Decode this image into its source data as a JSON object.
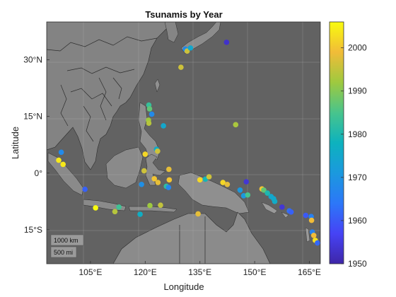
{
  "chart_data": {
    "type": "scatter",
    "title": "Tsunamis by Year",
    "xlabel": "Longitude",
    "ylabel": "Latitude",
    "xlim": [
      93,
      168
    ],
    "ylim": [
      -24,
      40
    ],
    "xticks": [
      105,
      120,
      135,
      150,
      165
    ],
    "xtick_labels": [
      "105°E",
      "120°E",
      "135°E",
      "150°E",
      "165°E"
    ],
    "yticks": [
      30,
      15,
      0,
      -15
    ],
    "ytick_labels": [
      "30°N",
      "15°N",
      "0°",
      "15°S"
    ],
    "colorbar": {
      "range": [
        1950,
        2006
      ],
      "ticks": [
        1950,
        1960,
        1970,
        1980,
        1990,
        2000
      ],
      "colormap": "parula"
    },
    "scalebar": {
      "km_label": "1000 km",
      "mi_label": "500 mi"
    },
    "background": "grayscale satellite basemap with country borders",
    "points": [
      {
        "lon": 96.3,
        "lat": 3.4,
        "year": 2004
      },
      {
        "lon": 97.0,
        "lat": 5.5,
        "year": 1968
      },
      {
        "lon": 97.5,
        "lat": 2.3,
        "year": 2004
      },
      {
        "lon": 103.5,
        "lat": -4.3,
        "year": 1961
      },
      {
        "lon": 106.4,
        "lat": -9.2,
        "year": 2006
      },
      {
        "lon": 111.7,
        "lat": -10.2,
        "year": 1994
      },
      {
        "lon": 112.8,
        "lat": -9.0,
        "year": 1984
      },
      {
        "lon": 118.6,
        "lat": -10.9,
        "year": 1977
      },
      {
        "lon": 119.0,
        "lat": -3.0,
        "year": 1969
      },
      {
        "lon": 119.7,
        "lat": 0.6,
        "year": 1996
      },
      {
        "lon": 120.0,
        "lat": 5.0,
        "year": 2002
      },
      {
        "lon": 121.0,
        "lat": 18.0,
        "year": 1983
      },
      {
        "lon": 121.2,
        "lat": 17.0,
        "year": 1987
      },
      {
        "lon": 121.8,
        "lat": 15.6,
        "year": 1968
      },
      {
        "lon": 120.9,
        "lat": 14.0,
        "year": 1992
      },
      {
        "lon": 121.0,
        "lat": 13.2,
        "year": 1994
      },
      {
        "lon": 121.3,
        "lat": -8.6,
        "year": 1992
      },
      {
        "lon": 122.5,
        "lat": -1.5,
        "year": 2000
      },
      {
        "lon": 123.1,
        "lat": 6.3,
        "year": 1976
      },
      {
        "lon": 123.4,
        "lat": 5.8,
        "year": 1996
      },
      {
        "lon": 123.5,
        "lat": -2.5,
        "year": 1998
      },
      {
        "lon": 124.2,
        "lat": -8.5,
        "year": 1995
      },
      {
        "lon": 125.0,
        "lat": 12.5,
        "year": 1975
      },
      {
        "lon": 125.8,
        "lat": -3.5,
        "year": 1982
      },
      {
        "lon": 126.4,
        "lat": -3.8,
        "year": 1967
      },
      {
        "lon": 126.5,
        "lat": 1.0,
        "year": 1998
      },
      {
        "lon": 126.6,
        "lat": -1.8,
        "year": 2000
      },
      {
        "lon": 129.8,
        "lat": 28.0,
        "year": 1996
      },
      {
        "lon": 131.0,
        "lat": 32.8,
        "year": 1968
      },
      {
        "lon": 131.5,
        "lat": 32.3,
        "year": 1996
      },
      {
        "lon": 132.4,
        "lat": 33.1,
        "year": 1975
      },
      {
        "lon": 134.5,
        "lat": -10.8,
        "year": 1998
      },
      {
        "lon": 135.0,
        "lat": -1.8,
        "year": 2002
      },
      {
        "lon": 136.5,
        "lat": -1.6,
        "year": 1979
      },
      {
        "lon": 137.5,
        "lat": -1.0,
        "year": 1996
      },
      {
        "lon": 141.3,
        "lat": -2.5,
        "year": 2002
      },
      {
        "lon": 142.3,
        "lat": 34.6,
        "year": 1953
      },
      {
        "lon": 142.5,
        "lat": -3.0,
        "year": 1998
      },
      {
        "lon": 144.8,
        "lat": 12.8,
        "year": 1993
      },
      {
        "lon": 146.0,
        "lat": -4.5,
        "year": 1971
      },
      {
        "lon": 147.0,
        "lat": -6.0,
        "year": 1971
      },
      {
        "lon": 147.7,
        "lat": -2.3,
        "year": 1954
      },
      {
        "lon": 148.1,
        "lat": -5.8,
        "year": 1985
      },
      {
        "lon": 152.0,
        "lat": -4.2,
        "year": 2000
      },
      {
        "lon": 152.5,
        "lat": -4.5,
        "year": 1987
      },
      {
        "lon": 153.5,
        "lat": -5.3,
        "year": 1980
      },
      {
        "lon": 154.5,
        "lat": -6.2,
        "year": 1975
      },
      {
        "lon": 155.2,
        "lat": -6.8,
        "year": 1975
      },
      {
        "lon": 155.5,
        "lat": -7.5,
        "year": 1976
      },
      {
        "lon": 157.5,
        "lat": -9.0,
        "year": 1954
      },
      {
        "lon": 159.5,
        "lat": -10.0,
        "year": 1963
      },
      {
        "lon": 160.0,
        "lat": -10.3,
        "year": 1961
      },
      {
        "lon": 164.0,
        "lat": -11.2,
        "year": 1960
      },
      {
        "lon": 165.5,
        "lat": -11.5,
        "year": 1966
      },
      {
        "lon": 165.6,
        "lat": -12.5,
        "year": 1999
      },
      {
        "lon": 165.8,
        "lat": -15.6,
        "year": 1966
      },
      {
        "lon": 166.2,
        "lat": -16.5,
        "year": 1999
      },
      {
        "lon": 166.6,
        "lat": -17.8,
        "year": 2003
      },
      {
        "lon": 167.2,
        "lat": -18.5,
        "year": 1962
      }
    ]
  }
}
